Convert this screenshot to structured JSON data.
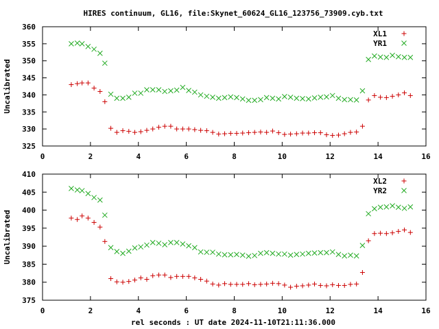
{
  "title": "HIRES continuum, GL16, file:Skynet_60624_GL16_123756_73909.cyb.txt",
  "xlabel": "rel seconds : UT date 2024-11-10T21:11:36.000",
  "colors": {
    "series1": "#cc0000",
    "series2": "#22aa22"
  },
  "chart_data": [
    {
      "type": "scatter",
      "ylabel": "Uncalibrated",
      "xlim": [
        0,
        16
      ],
      "ylim": [
        325,
        360
      ],
      "xticks": [
        0,
        2,
        4,
        6,
        8,
        10,
        12,
        14,
        16
      ],
      "yticks": [
        325,
        330,
        335,
        340,
        345,
        350,
        355,
        360
      ],
      "legend_position": "top-right",
      "series": [
        {
          "name": "XL1",
          "marker": "plus",
          "x": [
            1.2,
            1.45,
            1.65,
            1.9,
            2.15,
            2.4,
            2.6,
            2.85,
            3.1,
            3.35,
            3.6,
            3.85,
            4.1,
            4.35,
            4.6,
            4.85,
            5.1,
            5.35,
            5.6,
            5.85,
            6.1,
            6.35,
            6.6,
            6.85,
            7.1,
            7.35,
            7.6,
            7.85,
            8.1,
            8.35,
            8.6,
            8.85,
            9.1,
            9.35,
            9.6,
            9.85,
            10.1,
            10.35,
            10.6,
            10.85,
            11.1,
            11.35,
            11.6,
            11.85,
            12.1,
            12.35,
            12.6,
            12.85,
            13.1,
            13.35,
            13.6,
            13.85,
            14.1,
            14.35,
            14.6,
            14.85,
            15.1,
            15.35
          ],
          "y": [
            343,
            343.3,
            343.5,
            343.5,
            342,
            341,
            338,
            330.2,
            329,
            329.5,
            329.3,
            329,
            329.2,
            329.6,
            330,
            330.5,
            330.8,
            330.8,
            330,
            330,
            330,
            329.8,
            329.6,
            329.5,
            329,
            328.5,
            328.6,
            328.7,
            328.7,
            328.8,
            328.9,
            329,
            329.1,
            329,
            329.4,
            328.9,
            328.4,
            328.5,
            328.6,
            328.8,
            328.8,
            328.9,
            328.9,
            328.3,
            328.1,
            328.2,
            328.6,
            329,
            329.1,
            330.8,
            338.5,
            339.8,
            339.3,
            339.2,
            339.6,
            340,
            340.6,
            339.8
          ]
        },
        {
          "name": "YR1",
          "marker": "cross",
          "x": [
            1.2,
            1.45,
            1.65,
            1.9,
            2.15,
            2.4,
            2.6,
            2.85,
            3.1,
            3.35,
            3.6,
            3.85,
            4.1,
            4.35,
            4.6,
            4.85,
            5.1,
            5.35,
            5.6,
            5.85,
            6.1,
            6.35,
            6.6,
            6.85,
            7.1,
            7.35,
            7.6,
            7.85,
            8.1,
            8.35,
            8.6,
            8.85,
            9.1,
            9.35,
            9.6,
            9.85,
            10.1,
            10.35,
            10.6,
            10.85,
            11.1,
            11.35,
            11.6,
            11.85,
            12.1,
            12.35,
            12.6,
            12.85,
            13.1,
            13.35,
            13.6,
            13.85,
            14.1,
            14.35,
            14.6,
            14.85,
            15.1,
            15.35
          ],
          "y": [
            355,
            355.2,
            355,
            354.2,
            353.4,
            352.2,
            349.3,
            340.2,
            339,
            339,
            339.3,
            340.5,
            340.5,
            341.5,
            341.5,
            341.5,
            341,
            341.2,
            341.4,
            342.2,
            341.3,
            340.8,
            340,
            339.6,
            339.3,
            339,
            339.2,
            339.4,
            339.2,
            338.8,
            338.4,
            338.4,
            338.6,
            339.2,
            339,
            338.8,
            339.5,
            339.3,
            339,
            338.9,
            338.8,
            339.1,
            339.3,
            339.4,
            339.8,
            339,
            338.6,
            338.6,
            338.5,
            341.2,
            350.4,
            351.4,
            351.1,
            351,
            351.6,
            351.2,
            351,
            351
          ]
        }
      ]
    },
    {
      "type": "scatter",
      "ylabel": "Uncalibrated",
      "xlim": [
        0,
        16
      ],
      "ylim": [
        375,
        410
      ],
      "xticks": [
        0,
        2,
        4,
        6,
        8,
        10,
        12,
        14,
        16
      ],
      "yticks": [
        375,
        380,
        385,
        390,
        395,
        400,
        405,
        410
      ],
      "legend_position": "top-right",
      "series": [
        {
          "name": "XL2",
          "marker": "plus",
          "x": [
            1.2,
            1.45,
            1.65,
            1.9,
            2.15,
            2.4,
            2.6,
            2.85,
            3.1,
            3.35,
            3.6,
            3.85,
            4.1,
            4.35,
            4.6,
            4.85,
            5.1,
            5.35,
            5.6,
            5.85,
            6.1,
            6.35,
            6.6,
            6.85,
            7.1,
            7.35,
            7.6,
            7.85,
            8.1,
            8.35,
            8.6,
            8.85,
            9.1,
            9.35,
            9.6,
            9.85,
            10.1,
            10.35,
            10.6,
            10.85,
            11.1,
            11.35,
            11.6,
            11.85,
            12.1,
            12.35,
            12.6,
            12.85,
            13.1,
            13.35,
            13.6,
            13.85,
            14.1,
            14.35,
            14.6,
            14.85,
            15.1,
            15.35
          ],
          "y": [
            397.8,
            397.4,
            398.4,
            397.8,
            396.6,
            395.3,
            391.3,
            381,
            380.1,
            380,
            380.2,
            380.6,
            381.2,
            380.8,
            381.8,
            382,
            382,
            381.3,
            381.6,
            381.6,
            381.6,
            381.2,
            380.8,
            380.3,
            379.5,
            379.2,
            379.6,
            379.4,
            379.4,
            379.4,
            379.6,
            379.3,
            379.4,
            379.5,
            379.7,
            379.6,
            379.2,
            378.6,
            378.9,
            379,
            379.2,
            379.5,
            379.1,
            379,
            379.3,
            379.1,
            379.1,
            379.4,
            379.5,
            382.7,
            391.5,
            393.5,
            393.6,
            393.5,
            393.7,
            394.1,
            394.5,
            393.8
          ]
        },
        {
          "name": "YR2",
          "marker": "cross",
          "x": [
            1.2,
            1.45,
            1.65,
            1.9,
            2.15,
            2.4,
            2.6,
            2.85,
            3.1,
            3.35,
            3.6,
            3.85,
            4.1,
            4.35,
            4.6,
            4.85,
            5.1,
            5.35,
            5.6,
            5.85,
            6.1,
            6.35,
            6.6,
            6.85,
            7.1,
            7.35,
            7.6,
            7.85,
            8.1,
            8.35,
            8.6,
            8.85,
            9.1,
            9.35,
            9.6,
            9.85,
            10.1,
            10.35,
            10.6,
            10.85,
            11.1,
            11.35,
            11.6,
            11.85,
            12.1,
            12.35,
            12.6,
            12.85,
            13.1,
            13.35,
            13.6,
            13.85,
            14.1,
            14.35,
            14.6,
            14.85,
            15.1,
            15.35
          ],
          "y": [
            406,
            405.6,
            405.4,
            404.6,
            403.5,
            402.8,
            398.6,
            389.6,
            388.5,
            388,
            388.6,
            389.5,
            389.8,
            390.3,
            391,
            390.8,
            390.4,
            391,
            391,
            390.6,
            390.1,
            389.6,
            388.4,
            388.3,
            388.3,
            387.8,
            387.6,
            387.6,
            387.7,
            387.5,
            387.2,
            387.4,
            388,
            388.2,
            388,
            387.8,
            387.8,
            387.5,
            387.7,
            387.8,
            388,
            388.1,
            388.2,
            388.2,
            388.4,
            387.7,
            387.3,
            387.5,
            387.3,
            390.2,
            399,
            400.4,
            400.8,
            400.9,
            401.2,
            400.8,
            400.5,
            400.9
          ]
        }
      ]
    }
  ]
}
